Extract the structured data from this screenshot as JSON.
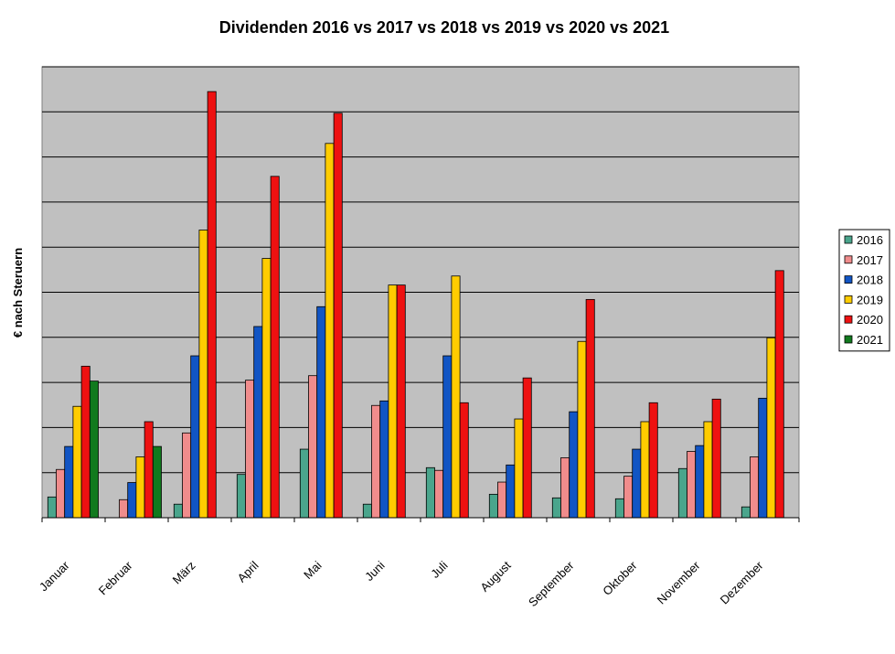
{
  "chart_data": {
    "type": "bar",
    "title": "Dividenden 2016 vs 2017 vs 2018 vs 2019 vs 2020 vs 2021",
    "xlabel": "",
    "ylabel": "€ nach Steruern",
    "ylim": [
      0,
      100
    ],
    "y_tick_labels_shown": false,
    "grid": true,
    "legend_position": "right",
    "categories": [
      "Januar",
      "Februar",
      "März",
      "April",
      "Mai",
      "Juni",
      "Juli",
      "August",
      "September",
      "Oktober",
      "November",
      "Dezember"
    ],
    "series": [
      {
        "name": "2016",
        "color": "#4aa58c",
        "values": [
          4.6,
          0,
          3.0,
          9.6,
          15.2,
          3.0,
          11.1,
          5.2,
          4.4,
          4.2,
          10.9,
          2.4
        ]
      },
      {
        "name": "2017",
        "color": "#f08c8c",
        "values": [
          10.7,
          4.0,
          18.8,
          30.5,
          31.5,
          24.9,
          10.5,
          7.9,
          13.3,
          9.2,
          14.7,
          13.5
        ]
      },
      {
        "name": "2018",
        "color": "#1155c4",
        "values": [
          15.8,
          7.8,
          35.9,
          42.4,
          46.8,
          25.9,
          35.9,
          11.7,
          23.5,
          15.2,
          16.0,
          26.5
        ]
      },
      {
        "name": "2019",
        "color": "#ffcc00",
        "values": [
          24.7,
          13.5,
          63.8,
          57.5,
          83.0,
          51.6,
          53.6,
          21.9,
          39.1,
          21.3,
          21.3,
          39.9
        ]
      },
      {
        "name": "2020",
        "color": "#ee1111",
        "values": [
          33.6,
          21.3,
          94.5,
          75.7,
          89.7,
          51.6,
          25.5,
          31.0,
          48.4,
          25.5,
          26.3,
          54.8
        ]
      },
      {
        "name": "2021",
        "color": "#117a1e",
        "values": [
          30.3,
          15.8,
          null,
          null,
          null,
          null,
          null,
          null,
          null,
          null,
          null,
          null
        ]
      }
    ]
  }
}
